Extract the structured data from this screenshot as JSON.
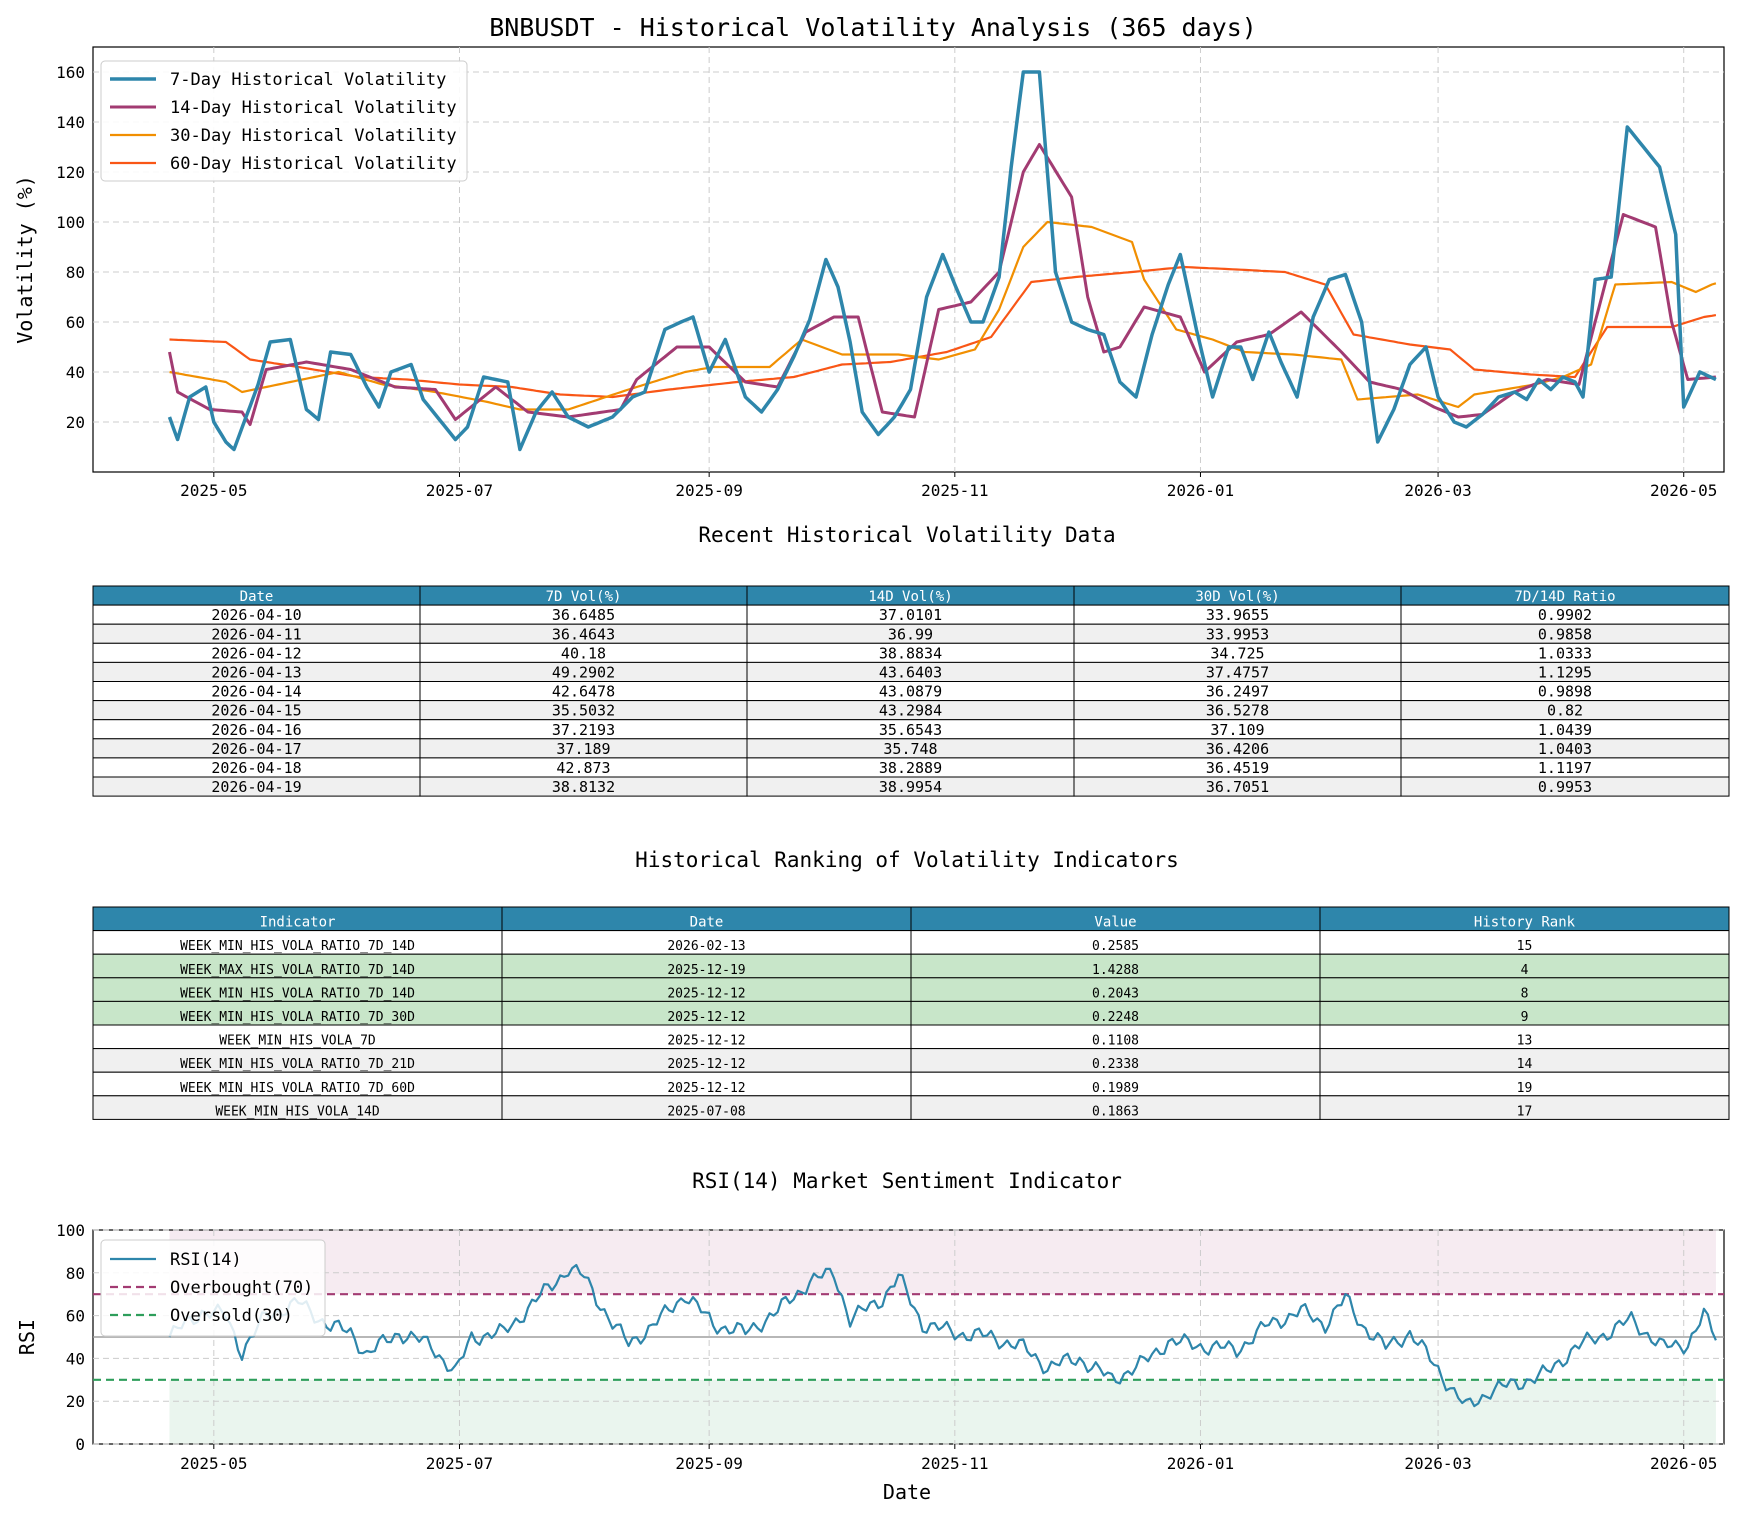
{
  "colors": {
    "vol7": "#2e86ab",
    "vol14": "#a23b72",
    "vol30": "#f18f01",
    "vol60": "#f95616",
    "rsi": "#2e86ab",
    "overbought": "#a23b72",
    "oversold": "#2e9e5b",
    "header_bg": "#2e86ab",
    "row_alt": "#f0f0f0",
    "row_highlight": "#c8e6c9"
  },
  "main_title": "BNBUSDT - Historical Volatility Analysis (365 days)",
  "table1": {
    "title": "Recent Historical Volatility Data",
    "columns": [
      "Date",
      "7D Vol(%)",
      "14D Vol(%)",
      "30D Vol(%)",
      "7D/14D Ratio"
    ],
    "rows": [
      [
        "2026-04-10",
        "36.6485",
        "37.0101",
        "33.9655",
        "0.9902"
      ],
      [
        "2026-04-11",
        "36.4643",
        "36.99",
        "33.9953",
        "0.9858"
      ],
      [
        "2026-04-12",
        "40.18",
        "38.8834",
        "34.725",
        "1.0333"
      ],
      [
        "2026-04-13",
        "49.2902",
        "43.6403",
        "37.4757",
        "1.1295"
      ],
      [
        "2026-04-14",
        "42.6478",
        "43.0879",
        "36.2497",
        "0.9898"
      ],
      [
        "2026-04-15",
        "35.5032",
        "43.2984",
        "36.5278",
        "0.82"
      ],
      [
        "2026-04-16",
        "37.2193",
        "35.6543",
        "37.109",
        "1.0439"
      ],
      [
        "2026-04-17",
        "37.189",
        "35.748",
        "36.4206",
        "1.0403"
      ],
      [
        "2026-04-18",
        "42.873",
        "38.2889",
        "36.4519",
        "1.1197"
      ],
      [
        "2026-04-19",
        "38.8132",
        "38.9954",
        "36.7051",
        "0.9953"
      ]
    ]
  },
  "table2": {
    "title": "Historical Ranking of Volatility Indicators",
    "columns": [
      "Indicator",
      "Date",
      "Value",
      "History Rank"
    ],
    "rows": [
      [
        "WEEK_MIN_HIS_VOLA_RATIO_7D_14D",
        "2026-02-13",
        "0.2585",
        "15"
      ],
      [
        "WEEK_MAX_HIS_VOLA_RATIO_7D_14D",
        "2025-12-19",
        "1.4288",
        "4"
      ],
      [
        "WEEK_MIN_HIS_VOLA_RATIO_7D_14D",
        "2025-12-12",
        "0.2043",
        "8"
      ],
      [
        "WEEK_MIN_HIS_VOLA_RATIO_7D_30D",
        "2025-12-12",
        "0.2248",
        "9"
      ],
      [
        "WEEK_MIN_HIS_VOLA_7D",
        "2025-12-12",
        "0.1108",
        "13"
      ],
      [
        "WEEK_MIN_HIS_VOLA_RATIO_7D_21D",
        "2025-12-12",
        "0.2338",
        "14"
      ],
      [
        "WEEK_MIN_HIS_VOLA_RATIO_7D_60D",
        "2025-12-12",
        "0.1989",
        "19"
      ],
      [
        "WEEK_MIN_HIS_VOLA_14D",
        "2025-07-08",
        "0.1863",
        "17"
      ]
    ],
    "highlighted_rows": [
      1,
      2,
      3
    ]
  },
  "chart_data": [
    {
      "type": "line",
      "title": "BNBUSDT - Historical Volatility Analysis (365 days)",
      "xlabel": "",
      "ylabel": "Volatility (%)",
      "x_ticks": [
        "2025-05",
        "2025-07",
        "2025-09",
        "2025-11",
        "2026-01",
        "2026-03",
        "2026-05"
      ],
      "y_ticks": [
        20,
        40,
        60,
        80,
        100,
        120,
        140,
        160
      ],
      "xlim": [
        "2025-04-01",
        "2026-05-11"
      ],
      "ylim": [
        0,
        170
      ],
      "grid": true,
      "legend_position": "top-left",
      "series": [
        {
          "name": "7-Day Historical Volatility",
          "points": [
            [
              "2025-04-20",
              22
            ],
            [
              "2025-04-22",
              13
            ],
            [
              "2025-04-25",
              30
            ],
            [
              "2025-04-29",
              34
            ],
            [
              "2025-05-01",
              20
            ],
            [
              "2025-05-04",
              12
            ],
            [
              "2025-05-06",
              9
            ],
            [
              "2025-05-09",
              22
            ],
            [
              "2025-05-12",
              35
            ],
            [
              "2025-05-15",
              52
            ],
            [
              "2025-05-20",
              53
            ],
            [
              "2025-05-24",
              25
            ],
            [
              "2025-05-27",
              21
            ],
            [
              "2025-05-30",
              48
            ],
            [
              "2025-06-04",
              47
            ],
            [
              "2025-06-08",
              34
            ],
            [
              "2025-06-11",
              26
            ],
            [
              "2025-06-14",
              40
            ],
            [
              "2025-06-19",
              43
            ],
            [
              "2025-06-22",
              29
            ],
            [
              "2025-06-26",
              21
            ],
            [
              "2025-06-30",
              13
            ],
            [
              "2025-07-03",
              18
            ],
            [
              "2025-07-07",
              38
            ],
            [
              "2025-07-13",
              36
            ],
            [
              "2025-07-16",
              9
            ],
            [
              "2025-07-20",
              24
            ],
            [
              "2025-07-24",
              32
            ],
            [
              "2025-07-28",
              22
            ],
            [
              "2025-08-02",
              18
            ],
            [
              "2025-08-08",
              22
            ],
            [
              "2025-08-13",
              30
            ],
            [
              "2025-08-16",
              32
            ],
            [
              "2025-08-21",
              57
            ],
            [
              "2025-08-25",
              60
            ],
            [
              "2025-08-28",
              62
            ],
            [
              "2025-09-01",
              40
            ],
            [
              "2025-09-05",
              53
            ],
            [
              "2025-09-10",
              30
            ],
            [
              "2025-09-14",
              24
            ],
            [
              "2025-09-18",
              33
            ],
            [
              "2025-09-22",
              46
            ],
            [
              "2025-09-26",
              61
            ],
            [
              "2025-09-30",
              85
            ],
            [
              "2025-10-03",
              74
            ],
            [
              "2025-10-06",
              52
            ],
            [
              "2025-10-09",
              24
            ],
            [
              "2025-10-13",
              15
            ],
            [
              "2025-10-17",
              22
            ],
            [
              "2025-10-21",
              33
            ],
            [
              "2025-10-25",
              70
            ],
            [
              "2025-10-29",
              87
            ],
            [
              "2025-11-01",
              75
            ],
            [
              "2025-11-05",
              60
            ],
            [
              "2025-11-08",
              60
            ],
            [
              "2025-11-12",
              78
            ],
            [
              "2025-11-15",
              122
            ],
            [
              "2025-11-18",
              160
            ],
            [
              "2025-11-22",
              160
            ],
            [
              "2025-11-26",
              80
            ],
            [
              "2025-11-30",
              60
            ],
            [
              "2025-12-04",
              57
            ],
            [
              "2025-12-08",
              55
            ],
            [
              "2025-12-12",
              36
            ],
            [
              "2025-12-16",
              30
            ],
            [
              "2025-12-20",
              55
            ],
            [
              "2025-12-24",
              75
            ],
            [
              "2025-12-27",
              87
            ],
            [
              "2025-12-31",
              57
            ],
            [
              "2026-01-04",
              30
            ],
            [
              "2026-01-08",
              50
            ],
            [
              "2026-01-11",
              50
            ],
            [
              "2026-01-14",
              37
            ],
            [
              "2026-01-18",
              56
            ],
            [
              "2026-01-21",
              44
            ],
            [
              "2026-01-25",
              30
            ],
            [
              "2026-01-29",
              62
            ],
            [
              "2026-02-02",
              77
            ],
            [
              "2026-02-06",
              79
            ],
            [
              "2026-02-10",
              60
            ],
            [
              "2026-02-14",
              12
            ],
            [
              "2026-02-18",
              25
            ],
            [
              "2026-02-22",
              43
            ],
            [
              "2026-02-26",
              50
            ],
            [
              "2026-03-01",
              30
            ],
            [
              "2026-03-05",
              20
            ],
            [
              "2026-03-08",
              18
            ],
            [
              "2026-03-12",
              23
            ],
            [
              "2026-03-16",
              30
            ],
            [
              "2026-03-20",
              32
            ],
            [
              "2026-03-23",
              29
            ],
            [
              "2026-03-26",
              37
            ],
            [
              "2026-03-29",
              33
            ],
            [
              "2026-04-01",
              38
            ],
            [
              "2026-04-04",
              36
            ],
            [
              "2026-04-06",
              30
            ],
            [
              "2026-04-09",
              77
            ],
            [
              "2026-04-13",
              78
            ],
            [
              "2026-04-17",
              138
            ],
            [
              "2026-04-21",
              130
            ],
            [
              "2026-04-25",
              122
            ],
            [
              "2026-04-29",
              95
            ],
            [
              "2026-05-01",
              26
            ],
            [
              "2026-05-05",
              40
            ],
            [
              "2026-05-09",
              37
            ]
          ]
        },
        {
          "name": "14-Day Historical Volatility",
          "points": []
        },
        {
          "name": "30-Day Historical Volatility",
          "points": []
        },
        {
          "name": "60-Day Historical Volatility",
          "points": []
        }
      ]
    },
    {
      "type": "line",
      "title": "RSI(14) Market Sentiment Indicator",
      "xlabel": "Date",
      "ylabel": "RSI",
      "x_ticks": [
        "2025-05",
        "2025-07",
        "2025-09",
        "2025-11",
        "2026-01",
        "2026-03",
        "2026-05"
      ],
      "y_ticks": [
        0,
        20,
        40,
        60,
        80,
        100
      ],
      "ylim": [
        0,
        100
      ],
      "grid": true,
      "legend_position": "top-left",
      "series": [
        {
          "name": "RSI(14)",
          "points": []
        },
        {
          "name": "Overbought(70)",
          "value": 70
        },
        {
          "name": "Oversold(30)",
          "value": 30
        }
      ]
    }
  ]
}
